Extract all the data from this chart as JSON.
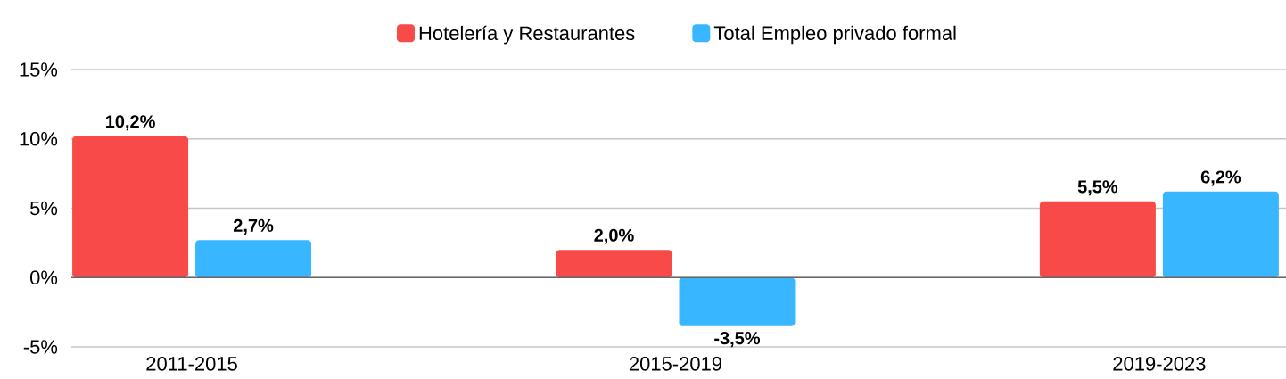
{
  "chart_data": {
    "type": "bar",
    "categories": [
      "2011-2015",
      "2015-2019",
      "2019-2023"
    ],
    "series": [
      {
        "name": "Hotelería y Restaurantes",
        "color": "#f94a4a",
        "values": [
          10.2,
          2.0,
          5.5
        ],
        "value_labels": [
          "10,2%",
          "2,0%",
          "5,5%"
        ]
      },
      {
        "name": "Total Empleo privado formal",
        "color": "#38b6ff",
        "values": [
          2.7,
          -3.5,
          6.2
        ],
        "value_labels": [
          "2,7%",
          "-3,5%",
          "6,2%"
        ]
      }
    ],
    "ylim": [
      -5,
      15
    ],
    "yticks": [
      {
        "value": -5,
        "label": "-5%"
      },
      {
        "value": 0,
        "label": "0%"
      },
      {
        "value": 5,
        "label": "5%"
      },
      {
        "value": 10,
        "label": "10%"
      },
      {
        "value": 15,
        "label": "15%"
      }
    ],
    "grid": "y",
    "legend": "top"
  }
}
